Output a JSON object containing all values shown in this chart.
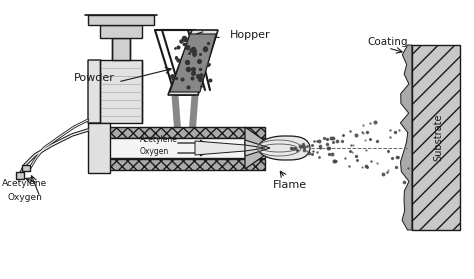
{
  "bg_color": "#ffffff",
  "line_color": "#1a1a1a",
  "labels": {
    "hopper": "Hopper",
    "powder": "Powder",
    "acetylene_gun": "Acetylene",
    "oxygen_gun": "Oxygen",
    "acetylene_label": "Acetylene",
    "oxygen_label": "Oxygen",
    "flame": "Flame",
    "coating": "Coating",
    "substrate": "Substrate"
  },
  "figsize": [
    4.74,
    2.79
  ],
  "dpi": 100
}
